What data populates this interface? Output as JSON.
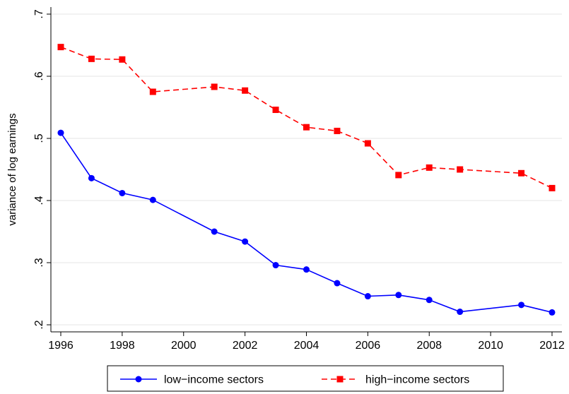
{
  "chart_data": {
    "type": "line",
    "title": "",
    "xlabel": "",
    "ylabel": "variance of log earnings",
    "xlim": [
      1996,
      2012
    ],
    "ylim": [
      0.2,
      0.7
    ],
    "x_ticks": [
      1996,
      1998,
      2000,
      2002,
      2004,
      2006,
      2008,
      2010,
      2012
    ],
    "x_tick_labels": [
      "1996",
      "1998",
      "2000",
      "2002",
      "2004",
      "2006",
      "2008",
      "2010",
      "2012"
    ],
    "y_ticks": [
      0.2,
      0.3,
      0.4,
      0.5,
      0.6,
      0.7
    ],
    "y_tick_labels": [
      ".2",
      ".3",
      ".4",
      ".5",
      ".6",
      ".7"
    ],
    "grid": true,
    "legend_position": "bottom",
    "series": [
      {
        "name": "low−income sectors",
        "color": "#0000ff",
        "marker": "circle",
        "line_style": "solid",
        "x": [
          1996,
          1997,
          1998,
          1999,
          2001,
          2002,
          2003,
          2004,
          2005,
          2006,
          2007,
          2008,
          2009,
          2011,
          2012
        ],
        "y": [
          0.509,
          0.436,
          0.412,
          0.401,
          0.35,
          0.334,
          0.296,
          0.289,
          0.267,
          0.246,
          0.248,
          0.24,
          0.221,
          0.232,
          0.22
        ]
      },
      {
        "name": "high−income sectors",
        "color": "#ff0000",
        "marker": "square",
        "line_style": "dashed",
        "x": [
          1996,
          1997,
          1998,
          1999,
          2001,
          2002,
          2003,
          2004,
          2005,
          2006,
          2007,
          2008,
          2009,
          2011,
          2012
        ],
        "y": [
          0.647,
          0.628,
          0.627,
          0.575,
          0.583,
          0.577,
          0.546,
          0.518,
          0.512,
          0.492,
          0.441,
          0.453,
          0.45,
          0.444,
          0.42
        ]
      }
    ]
  }
}
